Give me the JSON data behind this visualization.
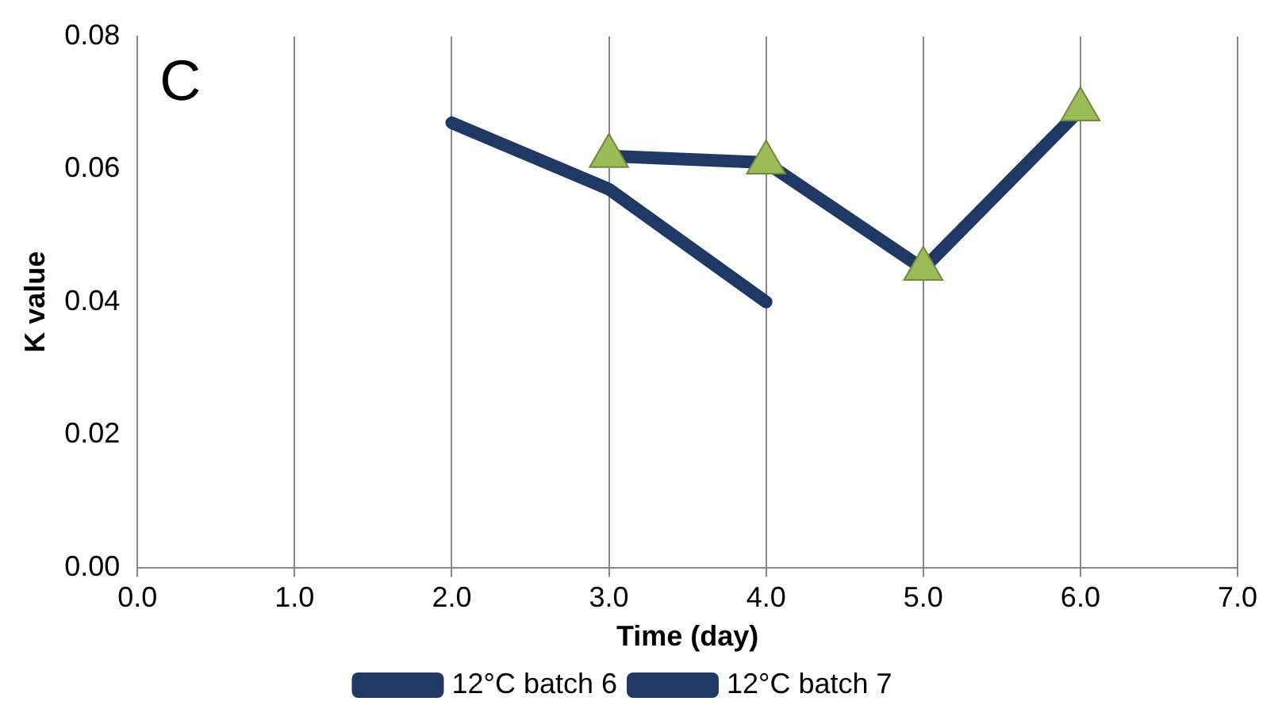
{
  "chart_data": {
    "type": "line",
    "xlabel": "Time (day)",
    "ylabel": "K value",
    "annotations": [
      "C"
    ],
    "xlim": [
      0,
      7
    ],
    "xticks": [
      {
        "value": 0,
        "label": "0.0"
      },
      {
        "value": 1,
        "label": "1.0"
      },
      {
        "value": 2,
        "label": "2.0"
      },
      {
        "value": 3,
        "label": "3.0"
      },
      {
        "value": 4,
        "label": "4.0"
      },
      {
        "value": 5,
        "label": "5.0"
      },
      {
        "value": 6,
        "label": "6.0"
      },
      {
        "value": 7,
        "label": "7.0"
      }
    ],
    "ylim": [
      0,
      0.08
    ],
    "yticks": [
      {
        "value": 0,
        "label": "0.00"
      },
      {
        "value": 0.02,
        "label": "0.02"
      },
      {
        "value": 0.04,
        "label": "0.04"
      },
      {
        "value": 0.06,
        "label": "0.06"
      },
      {
        "value": 0.08,
        "label": "0.08"
      }
    ],
    "grid": "x",
    "legend": "bottom",
    "series": [
      {
        "name": "12°C batch 6",
        "color": "#1f3864",
        "x": [
          2,
          3,
          4
        ],
        "values": [
          0.067,
          0.057,
          0.04
        ],
        "marker": "none"
      },
      {
        "name": "12°C batch 7",
        "color": "#1f3864",
        "x": [
          3,
          4,
          5,
          6
        ],
        "values": [
          0.062,
          0.061,
          0.045,
          0.069
        ],
        "marker": "triangle"
      }
    ]
  }
}
